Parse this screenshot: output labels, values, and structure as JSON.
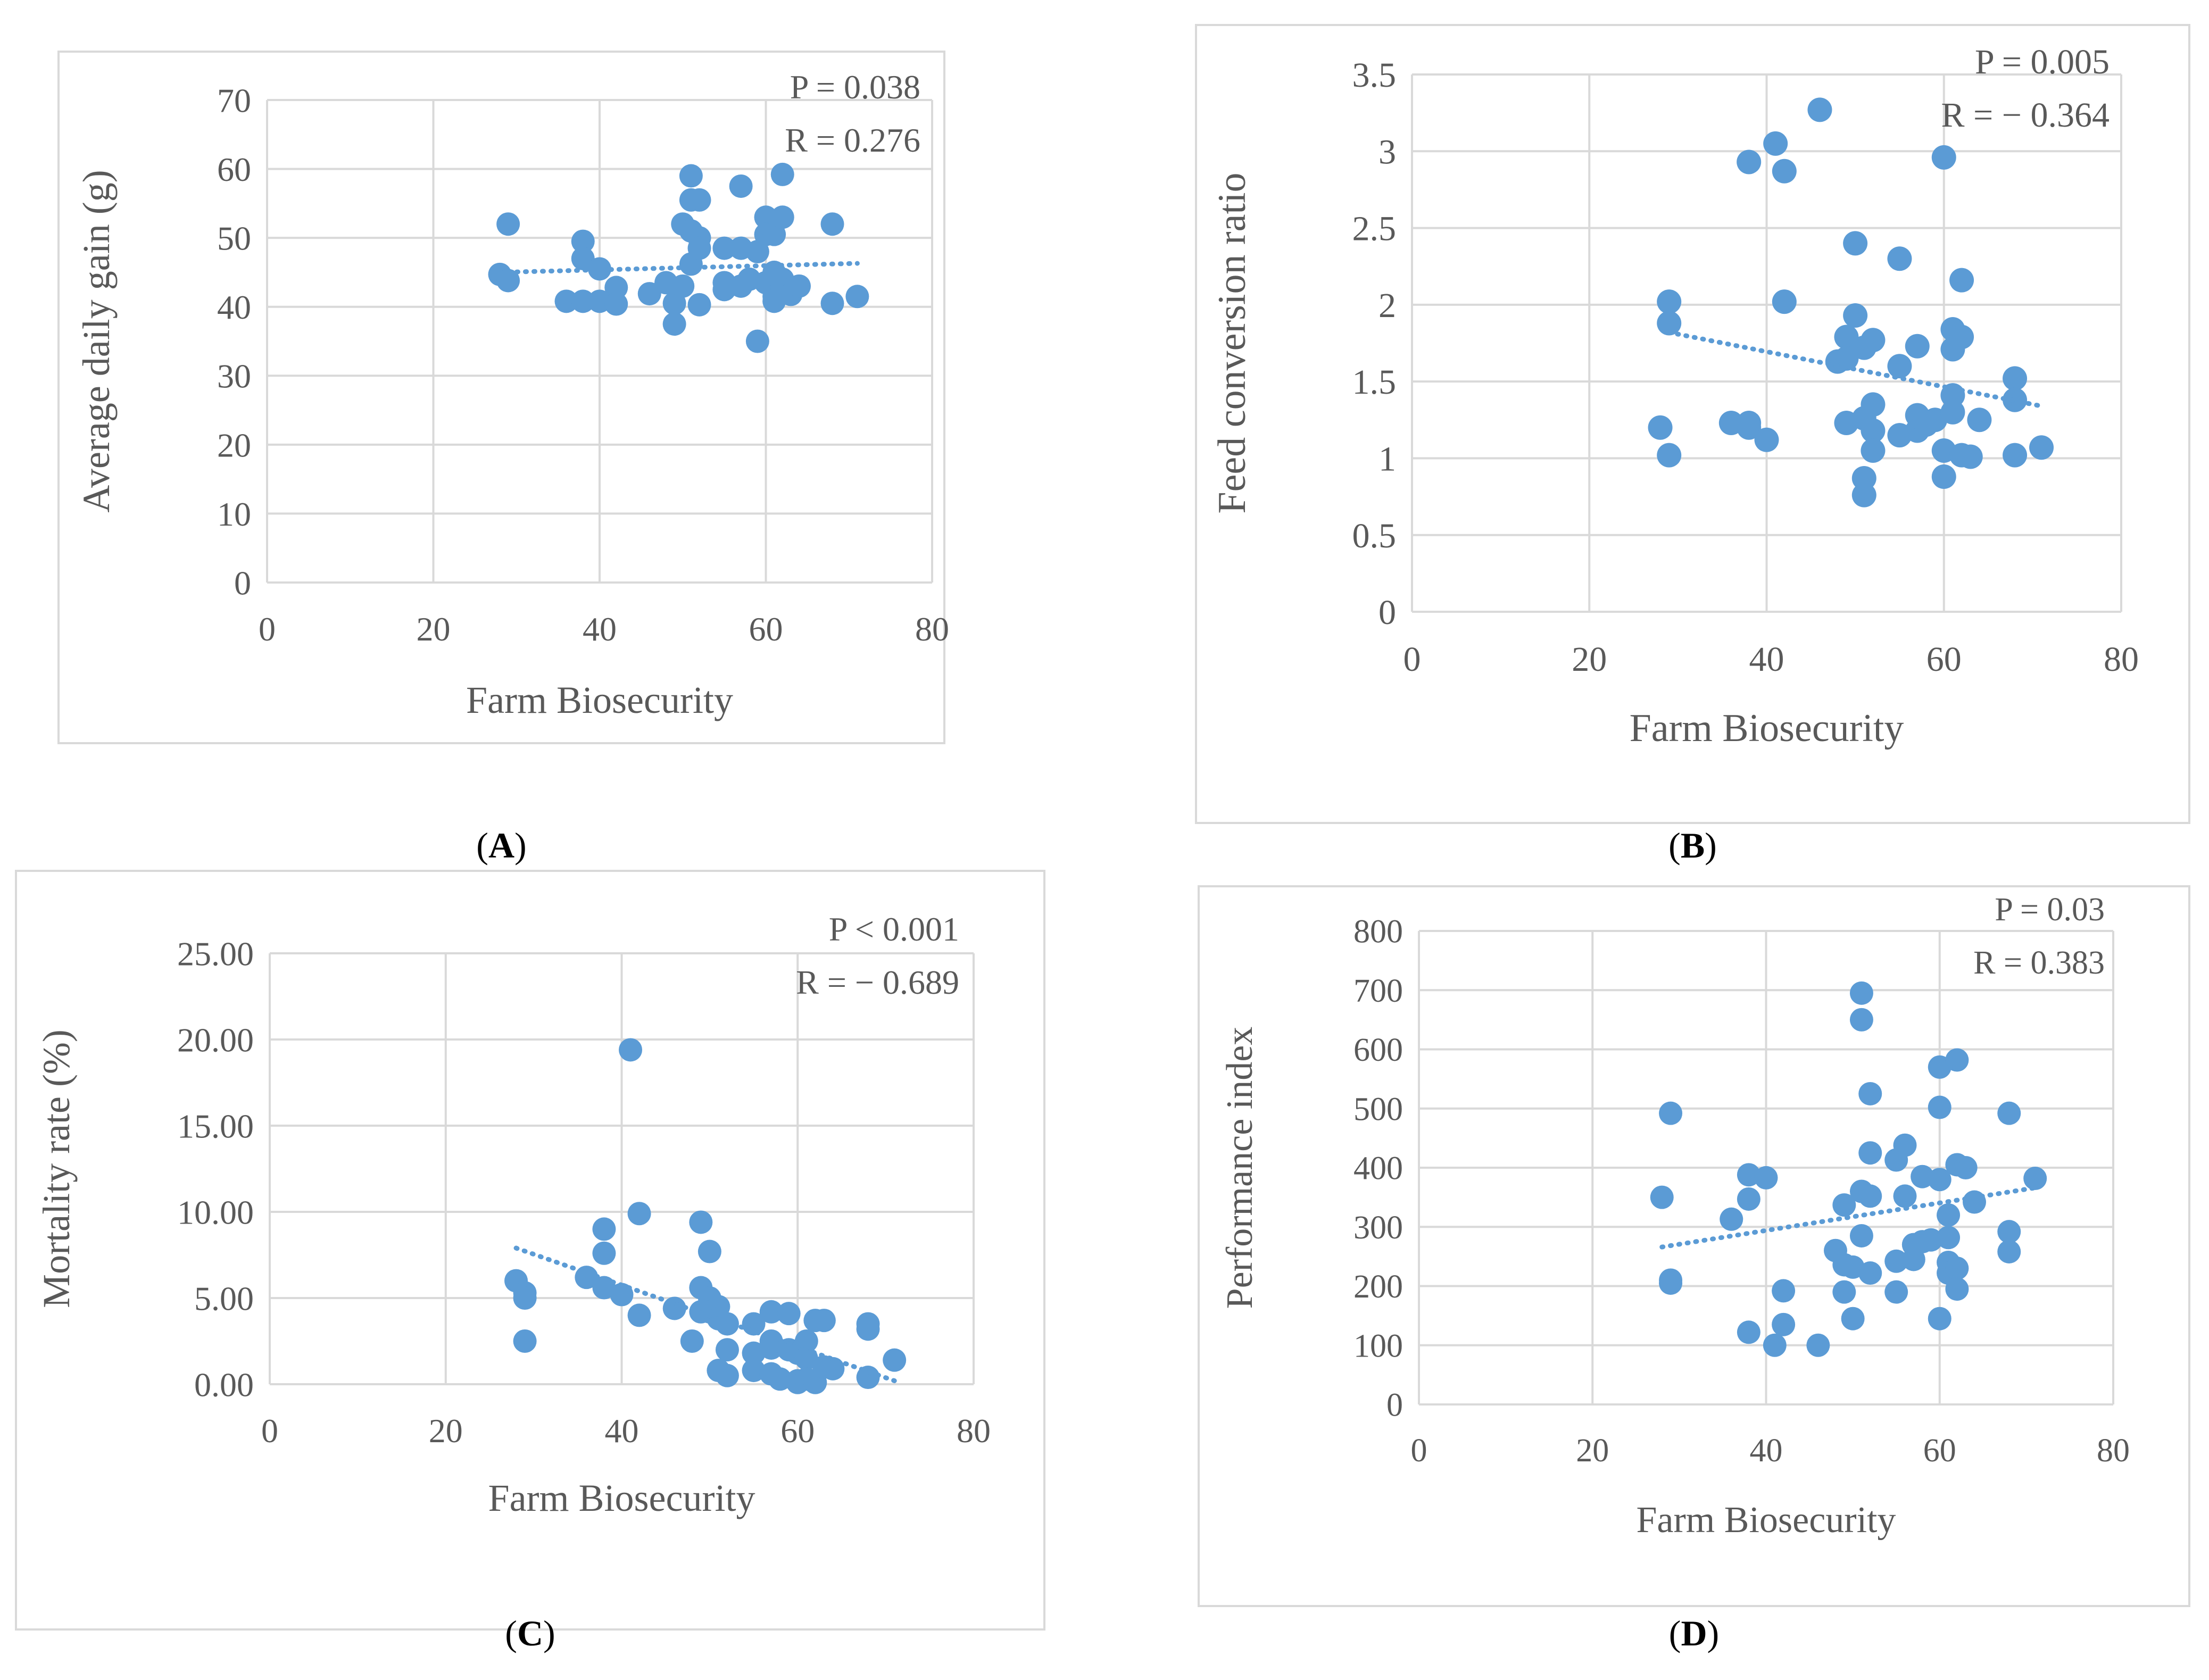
{
  "colors": {
    "point": "#5b9bd5",
    "grid": "#d9d9d9",
    "axis_text": "#595959",
    "frame": "#d9d9d9"
  },
  "chart_data": [
    {
      "type": "scatter",
      "panel_label": "A",
      "title": "",
      "xlabel": "Farm Biosecurity",
      "ylabel": "Average daily gain (g)",
      "xlim": [
        0,
        80
      ],
      "ylim": [
        0,
        70
      ],
      "xticks": [
        0,
        20,
        40,
        60,
        80
      ],
      "yticks": [
        0,
        10,
        20,
        30,
        40,
        50,
        60,
        70
      ],
      "ytick_labels": [
        "0",
        "10",
        "20",
        "30",
        "40",
        "50",
        "60",
        "70"
      ],
      "stats": [
        "P = 0.038",
        "R = 0.276"
      ],
      "trendline": [
        [
          28,
          45.0
        ],
        [
          71,
          46.3
        ]
      ],
      "points": [
        [
          28,
          44.7
        ],
        [
          29,
          52
        ],
        [
          29,
          43.8
        ],
        [
          36,
          40.8
        ],
        [
          38,
          49.5
        ],
        [
          38,
          47
        ],
        [
          38,
          40.8
        ],
        [
          40,
          45.5
        ],
        [
          40,
          40.8
        ],
        [
          42,
          42.8
        ],
        [
          42,
          40.4
        ],
        [
          46,
          41.9
        ],
        [
          48,
          43.5
        ],
        [
          49,
          37.5
        ],
        [
          49,
          40.5
        ],
        [
          50,
          43
        ],
        [
          50,
          52
        ],
        [
          51,
          59
        ],
        [
          51,
          55.5
        ],
        [
          51,
          51
        ],
        [
          51,
          46.2
        ],
        [
          52,
          55.5
        ],
        [
          52,
          50
        ],
        [
          52,
          48.5
        ],
        [
          52,
          40.3
        ],
        [
          55,
          48.5
        ],
        [
          55,
          43.5
        ],
        [
          55,
          42.5
        ],
        [
          57,
          57.5
        ],
        [
          57,
          48.5
        ],
        [
          57,
          43
        ],
        [
          58,
          44
        ],
        [
          59,
          35
        ],
        [
          59,
          48
        ],
        [
          60,
          53
        ],
        [
          60,
          50.5
        ],
        [
          60,
          43.5
        ],
        [
          61,
          50.5
        ],
        [
          61,
          45
        ],
        [
          61,
          41.5
        ],
        [
          61,
          40.8
        ],
        [
          62,
          59.2
        ],
        [
          62,
          53
        ],
        [
          62,
          44
        ],
        [
          62,
          42.5
        ],
        [
          63,
          41.8
        ],
        [
          64,
          43
        ],
        [
          68,
          52
        ],
        [
          68,
          40.5
        ],
        [
          71,
          41.5
        ]
      ]
    },
    {
      "type": "scatter",
      "panel_label": "B",
      "title": "",
      "xlabel": "Farm Biosecurity",
      "ylabel": "Feed conversion ratio",
      "xlim": [
        0,
        80
      ],
      "ylim": [
        0,
        3.5
      ],
      "xticks": [
        0,
        20,
        40,
        60,
        80
      ],
      "yticks": [
        0,
        0.5,
        1,
        1.5,
        2,
        2.5,
        3,
        3.5
      ],
      "ytick_labels": [
        "0",
        "0.5",
        "1",
        "1.5",
        "2",
        "2.5",
        "3",
        "3.5"
      ],
      "stats": [
        "P = 0.005",
        "R = − 0.364"
      ],
      "trendline": [
        [
          29,
          1.82
        ],
        [
          71,
          1.34
        ]
      ],
      "points": [
        [
          28,
          1.2
        ],
        [
          29,
          2.02
        ],
        [
          29,
          1.88
        ],
        [
          29,
          1.02
        ],
        [
          36,
          1.23
        ],
        [
          38,
          2.93
        ],
        [
          38,
          1.23
        ],
        [
          38,
          1.2
        ],
        [
          40,
          1.12
        ],
        [
          41,
          3.05
        ],
        [
          42,
          2.87
        ],
        [
          42,
          2.02
        ],
        [
          46,
          3.27
        ],
        [
          48,
          1.63
        ],
        [
          49,
          1.79
        ],
        [
          49,
          1.65
        ],
        [
          49,
          1.23
        ],
        [
          50,
          2.4
        ],
        [
          50,
          1.93
        ],
        [
          51,
          1.72
        ],
        [
          51,
          1.26
        ],
        [
          51,
          0.87
        ],
        [
          51,
          0.76
        ],
        [
          52,
          1.77
        ],
        [
          52,
          1.35
        ],
        [
          52,
          1.18
        ],
        [
          52,
          1.05
        ],
        [
          55,
          2.3
        ],
        [
          55,
          1.6
        ],
        [
          55,
          1.15
        ],
        [
          57,
          1.73
        ],
        [
          57,
          1.28
        ],
        [
          57,
          1.18
        ],
        [
          58,
          1.22
        ],
        [
          59,
          1.25
        ],
        [
          60,
          2.96
        ],
        [
          60,
          1.05
        ],
        [
          60,
          0.88
        ],
        [
          61,
          1.84
        ],
        [
          61,
          1.71
        ],
        [
          61,
          1.41
        ],
        [
          61,
          1.3
        ],
        [
          62,
          2.16
        ],
        [
          62,
          1.79
        ],
        [
          62,
          1.02
        ],
        [
          63,
          1.01
        ],
        [
          64,
          1.25
        ],
        [
          68,
          1.52
        ],
        [
          68,
          1.38
        ],
        [
          68,
          1.02
        ],
        [
          71,
          1.07
        ]
      ]
    },
    {
      "type": "scatter",
      "panel_label": "C",
      "title": "",
      "xlabel": "Farm Biosecurity",
      "ylabel": "Mortality rate (%)",
      "xlim": [
        0,
        80
      ],
      "ylim": [
        0,
        25
      ],
      "xticks": [
        0,
        20,
        40,
        60,
        80
      ],
      "yticks": [
        0,
        5,
        10,
        15,
        20,
        25
      ],
      "ytick_labels": [
        "0.00",
        "5.00",
        "10.00",
        "15.00",
        "20.00",
        "25.00"
      ],
      "stats": [
        "P < 0.001",
        "R = − 0.689"
      ],
      "trendline": [
        [
          28,
          7.9
        ],
        [
          71,
          0.2
        ]
      ],
      "points": [
        [
          28,
          6
        ],
        [
          29,
          5.3
        ],
        [
          29,
          5
        ],
        [
          29,
          2.5
        ],
        [
          36,
          6.2
        ],
        [
          38,
          9
        ],
        [
          38,
          7.6
        ],
        [
          38,
          5.6
        ],
        [
          40,
          5.2
        ],
        [
          41,
          19.4
        ],
        [
          42,
          9.9
        ],
        [
          42,
          4
        ],
        [
          46,
          4.4
        ],
        [
          48,
          2.5
        ],
        [
          49,
          9.4
        ],
        [
          49,
          5.6
        ],
        [
          49,
          4.2
        ],
        [
          50,
          7.7
        ],
        [
          50,
          5
        ],
        [
          50,
          4.2
        ],
        [
          51,
          4.5
        ],
        [
          51,
          3.8
        ],
        [
          51,
          0.8
        ],
        [
          52,
          3.5
        ],
        [
          52,
          2
        ],
        [
          52,
          0.5
        ],
        [
          55,
          3.5
        ],
        [
          55,
          1.8
        ],
        [
          55,
          0.8
        ],
        [
          57,
          4.2
        ],
        [
          57,
          2.5
        ],
        [
          57,
          2.1
        ],
        [
          57,
          0.6
        ],
        [
          58,
          0.3
        ],
        [
          59,
          4.1
        ],
        [
          59,
          2
        ],
        [
          60,
          1.8
        ],
        [
          60,
          0.2
        ],
        [
          60,
          0.1
        ],
        [
          61,
          2.5
        ],
        [
          61,
          1.5
        ],
        [
          61,
          0.3
        ],
        [
          62,
          3.7
        ],
        [
          62,
          0.1
        ],
        [
          63,
          3.7
        ],
        [
          63,
          1
        ],
        [
          64,
          0.9
        ],
        [
          68,
          3.5
        ],
        [
          68,
          3.2
        ],
        [
          68,
          0.4
        ],
        [
          71,
          1.4
        ]
      ]
    },
    {
      "type": "scatter",
      "panel_label": "D",
      "title": "",
      "xlabel": "Farm Biosecurity",
      "ylabel": "Performance index",
      "xlim": [
        0,
        80
      ],
      "ylim": [
        0,
        800
      ],
      "xticks": [
        0,
        20,
        40,
        60,
        80
      ],
      "yticks": [
        0,
        100,
        200,
        300,
        400,
        500,
        600,
        700,
        800
      ],
      "ytick_labels": [
        "0",
        "100",
        "200",
        "300",
        "400",
        "500",
        "600",
        "700",
        "800"
      ],
      "stats": [
        "P = 0.03",
        "R = 0.383"
      ],
      "trendline": [
        [
          28,
          266
        ],
        [
          71,
          366
        ]
      ],
      "points": [
        [
          28,
          350
        ],
        [
          29,
          492
        ],
        [
          29,
          210
        ],
        [
          29,
          205
        ],
        [
          36,
          313
        ],
        [
          38,
          388
        ],
        [
          38,
          347
        ],
        [
          38,
          122
        ],
        [
          40,
          383
        ],
        [
          41,
          100
        ],
        [
          42,
          192
        ],
        [
          42,
          135
        ],
        [
          46,
          100
        ],
        [
          48,
          260
        ],
        [
          49,
          337
        ],
        [
          49,
          236
        ],
        [
          49,
          190
        ],
        [
          50,
          145
        ],
        [
          50,
          232
        ],
        [
          51,
          695
        ],
        [
          51,
          650
        ],
        [
          51,
          360
        ],
        [
          51,
          285
        ],
        [
          52,
          525
        ],
        [
          52,
          425
        ],
        [
          52,
          352
        ],
        [
          52,
          222
        ],
        [
          55,
          413
        ],
        [
          55,
          242
        ],
        [
          55,
          190
        ],
        [
          56,
          438
        ],
        [
          56,
          352
        ],
        [
          57,
          270
        ],
        [
          57,
          245
        ],
        [
          58,
          385
        ],
        [
          58,
          275
        ],
        [
          59,
          278
        ],
        [
          60,
          570
        ],
        [
          60,
          502
        ],
        [
          60,
          380
        ],
        [
          60,
          145
        ],
        [
          61,
          320
        ],
        [
          61,
          282
        ],
        [
          61,
          240
        ],
        [
          61,
          222
        ],
        [
          62,
          582
        ],
        [
          62,
          405
        ],
        [
          62,
          230
        ],
        [
          62,
          195
        ],
        [
          63,
          400
        ],
        [
          64,
          342
        ],
        [
          68,
          492
        ],
        [
          68,
          292
        ],
        [
          68,
          258
        ],
        [
          71,
          382
        ]
      ]
    }
  ]
}
